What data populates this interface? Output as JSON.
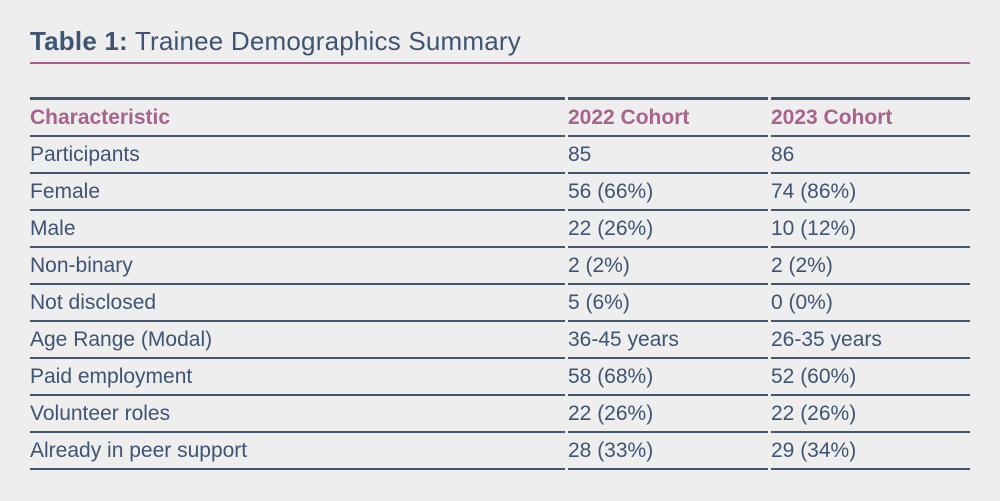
{
  "caption": {
    "label": "Table 1:",
    "title": " Trainee Demographics Summary"
  },
  "colors": {
    "background": "#efeeee",
    "text_navy": "#3d5472",
    "accent_mauve": "#a8638c",
    "caption_rule_mauve": "#a7608a",
    "table_rule_navy": "#42566e"
  },
  "table": {
    "headers": [
      "Characteristic",
      "2022 Cohort",
      "2023 Cohort"
    ],
    "rows": [
      [
        "Participants",
        "85",
        "86"
      ],
      [
        "Female",
        "56 (66%)",
        "74 (86%)"
      ],
      [
        "Male",
        "22 (26%)",
        "10 (12%)"
      ],
      [
        "Non-binary",
        "2 (2%)",
        "2 (2%)"
      ],
      [
        "Not disclosed",
        "5 (6%)",
        "0 (0%)"
      ],
      [
        "Age Range (Modal)",
        "36-45 years",
        "26-35 years"
      ],
      [
        "Paid employment",
        "58 (68%)",
        "52 (60%)"
      ],
      [
        "Volunteer roles",
        "22 (26%)",
        "22 (26%)"
      ],
      [
        "Already in peer support",
        "28 (33%)",
        "29 (34%)"
      ]
    ]
  }
}
